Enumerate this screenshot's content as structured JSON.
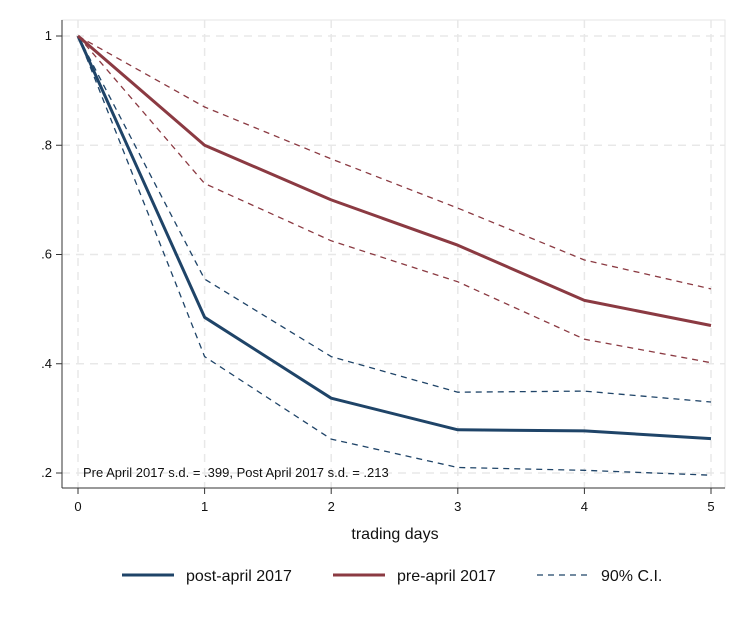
{
  "chart_data": {
    "type": "line",
    "xlabel": "trading days",
    "ylabel": "",
    "x": [
      0,
      1,
      2,
      3,
      4,
      5
    ],
    "xlim": [
      0,
      5
    ],
    "ylim": [
      0.2,
      1.0
    ],
    "x_ticks": [
      "0",
      "1",
      "2",
      "3",
      "4",
      "5"
    ],
    "y_ticks": [
      {
        "value": 1.0,
        "label": "1"
      },
      {
        "value": 0.8,
        "label": ".8"
      },
      {
        "value": 0.6,
        "label": ".6"
      },
      {
        "value": 0.4,
        "label": ".4"
      },
      {
        "value": 0.2,
        "label": ".2"
      }
    ],
    "grid": true,
    "series": [
      {
        "name": "post-april 2017",
        "values": [
          1.0,
          0.485,
          0.337,
          0.279,
          0.277,
          0.263
        ],
        "color": "#1f4468",
        "style": "solid"
      },
      {
        "name": "pre-april 2017",
        "values": [
          1.0,
          0.8,
          0.7,
          0.617,
          0.516,
          0.47
        ],
        "color": "#8b3a42",
        "style": "solid"
      },
      {
        "values": [
          1.0,
          0.555,
          0.413,
          0.348,
          0.35,
          0.33
        ],
        "color": "#1f4468",
        "style": "dashed"
      },
      {
        "values": [
          1.0,
          0.413,
          0.262,
          0.21,
          0.205,
          0.196
        ],
        "color": "#1f4468",
        "style": "dashed"
      },
      {
        "values": [
          1.0,
          0.87,
          0.775,
          0.685,
          0.59,
          0.537
        ],
        "color": "#8b3a42",
        "style": "dashed"
      },
      {
        "values": [
          1.0,
          0.73,
          0.625,
          0.55,
          0.445,
          0.402
        ],
        "color": "#8b3a42",
        "style": "dashed"
      }
    ],
    "annotation": "Pre April 2017 s.d. = .399,  Post April 2017 s.d. = .213",
    "legend": {
      "placement": "bottom",
      "entries": [
        {
          "label": "post-april 2017",
          "color": "#1f4468",
          "style": "solid"
        },
        {
          "label": "pre-april 2017",
          "color": "#8b3a42",
          "style": "solid"
        },
        {
          "label": "90% C.I.",
          "color": "#1f4468",
          "style": "dashed"
        }
      ]
    }
  }
}
